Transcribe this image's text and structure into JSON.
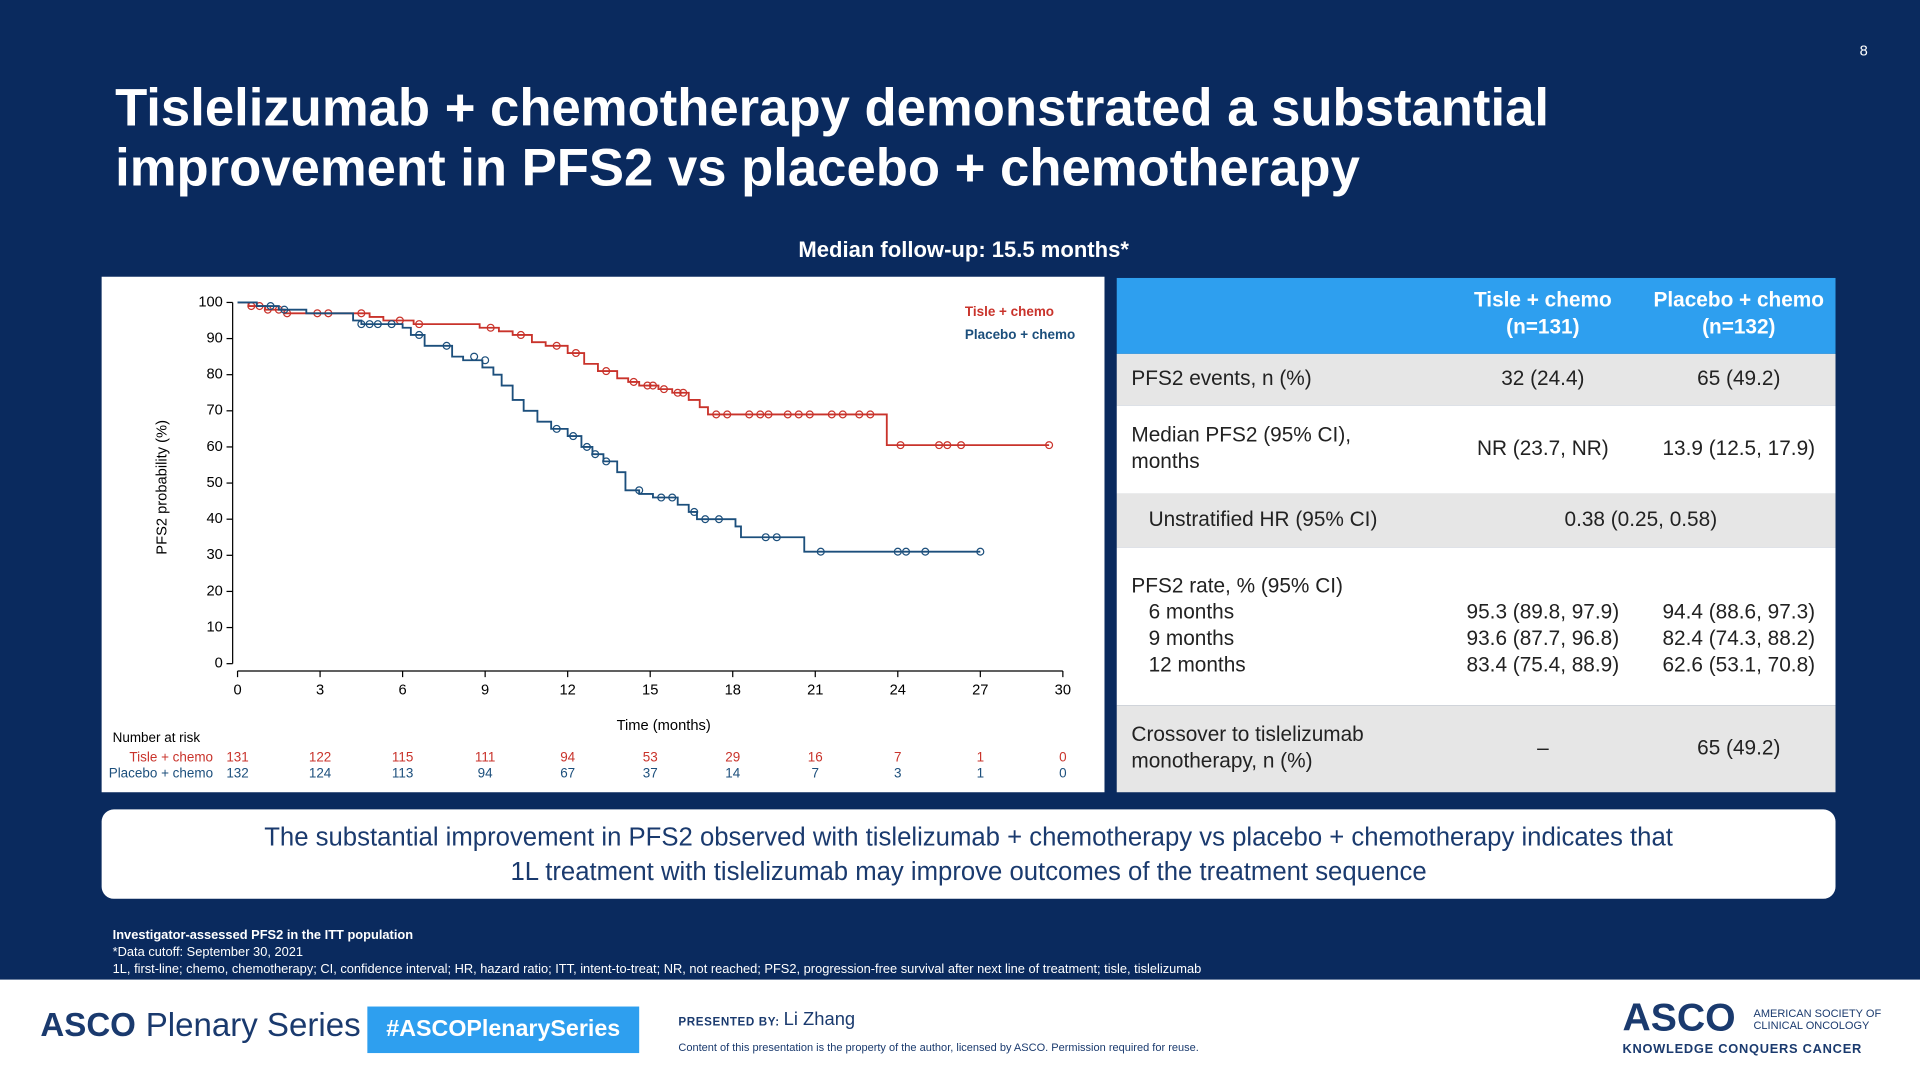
{
  "header": {
    "slide_number": "8",
    "title_lines": [
      "Tislelizumab + chemotherapy demonstrated a substantial",
      "improvement in PFS2 vs placebo + chemotherapy"
    ],
    "subtitle": "Median follow-up: 15.5 months*"
  },
  "chart_data": {
    "type": "step",
    "y_label": "PFS2 probability (%)",
    "x_label": "Time (months)",
    "xlim": [
      0,
      30
    ],
    "xticks": [
      0,
      3,
      6,
      9,
      12,
      15,
      18,
      21,
      24,
      27,
      30
    ],
    "ylim": [
      0,
      100
    ],
    "yticks": [
      0,
      10,
      20,
      30,
      40,
      50,
      60,
      70,
      80,
      90,
      100
    ],
    "legend": "top-right",
    "series": [
      {
        "name": "Tisle + chemo",
        "color": "#c9332b",
        "x": [
          0,
          0.4,
          1,
          1.7,
          4.8,
          5.3,
          6.4,
          8.8,
          9.5,
          10,
          10.7,
          11.2,
          12,
          12.6,
          13.1,
          13.8,
          14.2,
          14.6,
          15.3,
          15.8,
          16.4,
          16.8,
          17.1,
          23.6,
          29.5
        ],
        "values": [
          100,
          99,
          98,
          97,
          96,
          95,
          94,
          93,
          92,
          91,
          89,
          88,
          86,
          83,
          81,
          79,
          78,
          77,
          76,
          75,
          73,
          71,
          69,
          60.5,
          60.5
        ],
        "censored_x": [
          0.5,
          0.8,
          1.1,
          1.5,
          1.8,
          2.9,
          3.3,
          4.5,
          5.9,
          6.6,
          9.2,
          10.3,
          11.6,
          12.3,
          13.4,
          14.4,
          14.9,
          15.1,
          15.5,
          16,
          16.2,
          17.4,
          17.8,
          18.6,
          19,
          19.3,
          20,
          20.4,
          20.8,
          21.6,
          22,
          22.6,
          23,
          24.1,
          25.5,
          25.8,
          26.3,
          29.5
        ],
        "censored_values": [
          99,
          99,
          98,
          98,
          97,
          97,
          97,
          97,
          95,
          94,
          93,
          91,
          88,
          86,
          81,
          78,
          77,
          77,
          76,
          75,
          75,
          69,
          69,
          69,
          69,
          69,
          69,
          69,
          69,
          69,
          69,
          69,
          69,
          60.5,
          60.5,
          60.5,
          60.5,
          60.5
        ]
      },
      {
        "name": "Placebo + chemo",
        "color": "#1c4f7c",
        "x": [
          0,
          0.7,
          1.5,
          2.5,
          4.2,
          4.5,
          6,
          6.3,
          6.8,
          7.8,
          8.2,
          8.9,
          9.3,
          9.6,
          10,
          10.4,
          10.9,
          11.4,
          12,
          12.5,
          12.9,
          13.3,
          13.8,
          14.1,
          14.6,
          15.1,
          16,
          16.4,
          16.7,
          18.1,
          18.3,
          20.6,
          27
        ],
        "values": [
          100,
          99,
          98,
          97,
          95,
          94,
          93,
          91,
          88,
          85,
          84,
          82,
          80,
          77,
          73,
          70,
          67,
          65,
          63,
          60,
          58,
          56,
          53,
          48,
          47,
          46,
          44,
          42,
          40,
          38,
          35,
          31,
          31
        ],
        "censored_x": [
          1.2,
          1.7,
          4.5,
          4.8,
          5.1,
          5.6,
          6.6,
          7.6,
          8.6,
          9,
          11.6,
          12.2,
          12.7,
          13,
          13.4,
          14.6,
          15.4,
          15.8,
          16.6,
          17,
          17.5,
          19.2,
          19.6,
          21.2,
          24,
          24.3,
          25,
          27
        ],
        "censored_values": [
          99,
          98,
          94,
          94,
          94,
          94,
          91,
          88,
          85,
          84,
          65,
          63,
          60,
          58,
          56,
          48,
          46,
          46,
          42,
          40,
          40,
          35,
          35,
          31,
          31,
          31,
          31,
          31
        ]
      }
    ],
    "risk_table": {
      "title": "Number at risk",
      "rows": [
        {
          "name": "Tisle + chemo",
          "values": [
            131,
            122,
            115,
            111,
            94,
            53,
            29,
            16,
            7,
            1,
            0
          ]
        },
        {
          "name": "Placebo + chemo",
          "values": [
            132,
            124,
            113,
            94,
            67,
            37,
            14,
            7,
            3,
            1,
            0
          ]
        }
      ]
    }
  },
  "table": {
    "columns": [
      [
        "Tisle + chemo",
        "(n=131)"
      ],
      [
        "Placebo + chemo",
        "(n=132)"
      ]
    ],
    "rows": [
      {
        "label": [
          "PFS2 events, n (%)"
        ],
        "cells": [
          [
            "32 (24.4)"
          ],
          [
            "65 (49.2)"
          ]
        ]
      },
      {
        "label": [
          "Median PFS2 (95% CI),",
          "months"
        ],
        "cells": [
          [
            "NR (23.7, NR)"
          ],
          [
            "13.9 (12.5, 17.9)"
          ]
        ]
      },
      {
        "label": [
          "Unstratified HR (95% CI)"
        ],
        "merged": [
          "0.38 (0.25, 0.58)"
        ]
      },
      {
        "label": [
          "PFS2 rate, % (95% CI)",
          "6 months",
          "9 months",
          "12 months"
        ],
        "cells": [
          [
            "95.3 (89.8, 97.9)",
            "93.6 (87.7, 96.8)",
            "83.4 (75.4, 88.9)"
          ],
          [
            "94.4 (88.6, 97.3)",
            "82.4 (74.3, 88.2)",
            "62.6 (53.1, 70.8)"
          ]
        ]
      },
      {
        "label": [
          "Crossover to tislelizumab",
          "monotherapy, n (%)"
        ],
        "cells": [
          [
            "–"
          ],
          [
            "65 (49.2)"
          ]
        ]
      }
    ]
  },
  "callout": [
    "The substantial improvement in PFS2 observed with tislelizumab + chemotherapy vs placebo + chemotherapy indicates that",
    "1L treatment with tislelizumab may improve outcomes of the treatment sequence"
  ],
  "footnotes": [
    "Investigator-assessed PFS2 in the ITT population",
    "*Data cutoff: September 30, 2021",
    "1L, first-line; chemo, chemotherapy; CI, confidence interval; HR, hazard ratio; ITT, intent-to-treat; NR, not reached; PFS2, progression-free survival after next line of treatment; tisle, tislelizumab"
  ],
  "footer": {
    "brand_short": "ASCO",
    "brand_rest": "Plenary Series",
    "hashtag": "#ASCOPlenarySeries",
    "presented_by": "PRESENTED BY:",
    "presenter": "Li Zhang",
    "notice": "Content of this presentation is the property of the author, licensed by ASCO. Permission required for reuse.",
    "logo": "ASCO",
    "logo_line1": "AMERICAN SOCIETY OF",
    "logo_line2": "CLINICAL ONCOLOGY",
    "tagline": "KNOWLEDGE CONQUERS CANCER"
  }
}
